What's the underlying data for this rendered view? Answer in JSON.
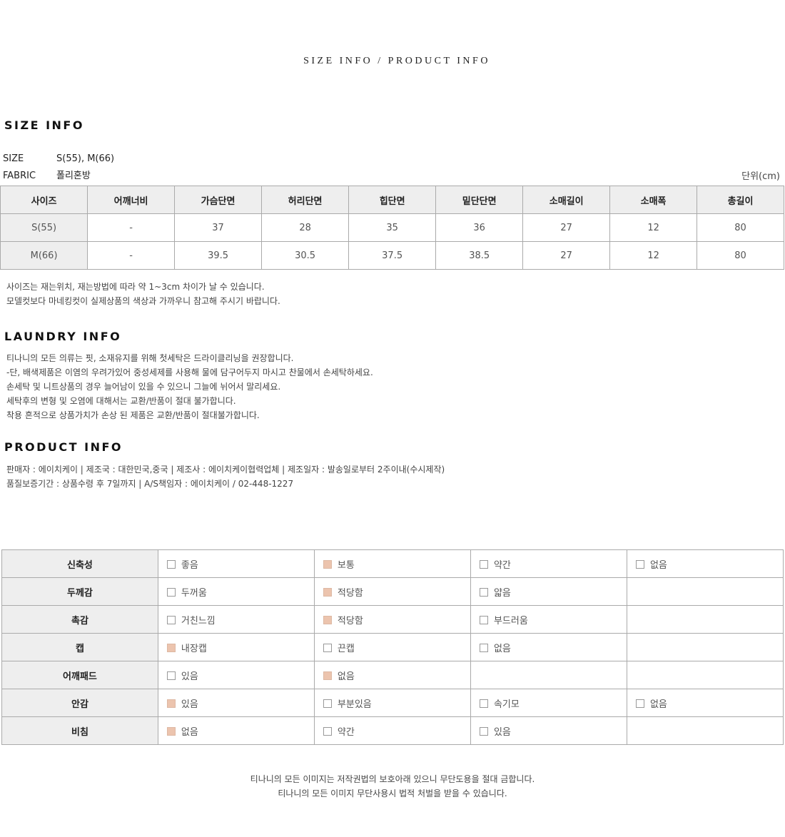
{
  "title": "SIZE INFO / PRODUCT INFO",
  "size_info": {
    "heading": "SIZE INFO",
    "size_label": "SIZE",
    "size_value": "S(55), M(66)",
    "fabric_label": "FABRIC",
    "fabric_value": "폴리혼방",
    "unit": "단위(cm)",
    "columns": [
      "사이즈",
      "어깨너비",
      "가슴단면",
      "허리단면",
      "힙단면",
      "밑단단면",
      "소매길이",
      "소매폭",
      "총길이"
    ],
    "rows": [
      [
        "S(55)",
        "-",
        "37",
        "28",
        "35",
        "36",
        "27",
        "12",
        "80"
      ],
      [
        "M(66)",
        "-",
        "39.5",
        "30.5",
        "37.5",
        "38.5",
        "27",
        "12",
        "80"
      ]
    ],
    "notes": [
      "사이즈는 재는위치, 재는방법에 따라 약 1~3cm 차이가 날 수 있습니다.",
      "모델컷보다 마네킹컷이 실제상품의 색상과 가까우니 참고해 주시기 바랍니다."
    ]
  },
  "laundry": {
    "heading": "LAUNDRY INFO",
    "lines": [
      "티나니의 모든 의류는 핏, 소재유지를 위해 첫세탁은 드라이클리닝을 권장합니다.",
      "-단, 배색제품은 이염의 우려가있어 중성세제를 사용해 물에 담구어두지 마시고 찬물에서 손세탁하세요.",
      "손세탁 및 니트상품의 경우 늘어남이 있을 수 있으니 그늘에 뉘어서 말리세요.",
      "세탁후의 변형 및 오염에 대해서는 교환/반품이 절대 불가합니다.",
      "착용 흔적으로 상품가치가 손상 된 제품은 교환/반품이 절대불가합니다."
    ]
  },
  "product": {
    "heading": "PRODUCT INFO",
    "lines": [
      "판매자 : 에이치케이 | 제조국 : 대한민국,중국 | 제조사 : 에이치케이협력업체 | 제조일자 : 발송일로부터 2주이내(수시제작)",
      "품질보증기간 : 상품수령 후 7일까지 | A/S책임자 : 에이치케이 / 02-448-1227"
    ]
  },
  "attributes": [
    {
      "label": "신축성",
      "options": [
        {
          "text": "좋음",
          "checked": false
        },
        {
          "text": "보통",
          "checked": true
        },
        {
          "text": "약간",
          "checked": false
        },
        {
          "text": "없음",
          "checked": false
        }
      ]
    },
    {
      "label": "두께감",
      "options": [
        {
          "text": "두꺼움",
          "checked": false
        },
        {
          "text": "적당함",
          "checked": true
        },
        {
          "text": "얇음",
          "checked": false
        }
      ]
    },
    {
      "label": "촉감",
      "options": [
        {
          "text": "거친느낌",
          "checked": false
        },
        {
          "text": "적당함",
          "checked": true
        },
        {
          "text": "부드러움",
          "checked": false
        }
      ]
    },
    {
      "label": "캡",
      "options": [
        {
          "text": "내장캡",
          "checked": true
        },
        {
          "text": "끈캡",
          "checked": false
        },
        {
          "text": "없음",
          "checked": false
        }
      ]
    },
    {
      "label": "어깨패드",
      "options": [
        {
          "text": "있음",
          "checked": false
        },
        {
          "text": "없음",
          "checked": true
        }
      ]
    },
    {
      "label": "안감",
      "options": [
        {
          "text": "있음",
          "checked": true
        },
        {
          "text": "부분있음",
          "checked": false
        },
        {
          "text": "속기모",
          "checked": false
        },
        {
          "text": "없음",
          "checked": false
        }
      ]
    },
    {
      "label": "비침",
      "options": [
        {
          "text": "없음",
          "checked": true
        },
        {
          "text": "약간",
          "checked": false
        },
        {
          "text": "있음",
          "checked": false
        }
      ]
    }
  ],
  "checked_color": "#ecc4ae",
  "footer": [
    "티나니의 모든 이미지는 저작권법의 보호아래 있으니 무단도용을 절대 금합니다.",
    "티나니의 모든 이미지 무단사용시 법적 처벌을 받을 수 있습니다."
  ]
}
